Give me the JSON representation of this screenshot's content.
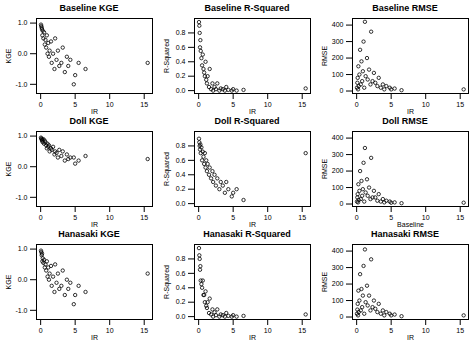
{
  "chart_data": [
    {
      "type": "scatter",
      "title": "Baseline KGE",
      "x_label": "IR",
      "y_label": "KGE",
      "color": "#000000",
      "marker": "open circle",
      "x": [
        0.05,
        0.1,
        0.15,
        0.2,
        0.25,
        0.3,
        0.4,
        0.5,
        0.6,
        0.7,
        0.8,
        0.9,
        1.0,
        1.1,
        1.2,
        1.3,
        1.5,
        1.6,
        1.8,
        2.0,
        2.1,
        2.3,
        2.5,
        2.7,
        3.0,
        3.2,
        3.5,
        3.8,
        4.0,
        4.3,
        4.8,
        5.0,
        5.5,
        6.5,
        15.5
      ],
      "values": [
        0.95,
        0.9,
        0.85,
        0.8,
        0.6,
        0.75,
        0.5,
        0.7,
        0.3,
        0.45,
        0.2,
        0.6,
        0.0,
        0.35,
        -0.1,
        0.1,
        0.4,
        -0.3,
        0.0,
        -0.5,
        0.5,
        -0.2,
        0.1,
        -0.4,
        -0.3,
        0.2,
        -0.6,
        -0.1,
        -0.4,
        -0.2,
        -1.0,
        -0.7,
        -0.3,
        -0.5,
        -0.3
      ],
      "xlim": [
        -0.6,
        16.2
      ],
      "xticks": [
        0,
        5,
        10,
        15
      ],
      "ylim": [
        -1.3,
        1.15
      ],
      "yticks": [
        {
          "value": -1,
          "label": "-1.0"
        },
        {
          "value": 0,
          "label": "0.0"
        },
        {
          "value": 1,
          "label": "1.0"
        }
      ]
    },
    {
      "type": "scatter",
      "title": "Baseline R-Squared",
      "x_label": "IR",
      "y_label": "R-Squared",
      "color": "#000000",
      "marker": "open circle",
      "x": [
        0.05,
        0.1,
        0.15,
        0.2,
        0.25,
        0.3,
        0.4,
        0.5,
        0.6,
        0.7,
        0.8,
        0.9,
        1.0,
        1.1,
        1.2,
        1.3,
        1.5,
        1.6,
        1.8,
        2.0,
        2.1,
        2.3,
        2.5,
        2.7,
        3.0,
        3.2,
        3.5,
        3.8,
        4.0,
        4.3,
        4.8,
        5.0,
        5.5,
        6.5,
        15.5
      ],
      "values": [
        0.95,
        0.9,
        0.8,
        0.6,
        0.7,
        0.55,
        0.45,
        0.35,
        0.5,
        0.3,
        0.25,
        0.2,
        0.4,
        0.15,
        0.1,
        0.2,
        0.05,
        0.3,
        0.02,
        0.1,
        0.0,
        0.05,
        0.02,
        0.1,
        0.0,
        0.03,
        0.02,
        0.0,
        0.05,
        0.01,
        0.0,
        0.02,
        0.0,
        0.01,
        0.03
      ],
      "xlim": [
        -0.6,
        16.2
      ],
      "xticks": [
        0,
        5,
        10,
        15
      ],
      "ylim": [
        -0.04,
        1.0
      ],
      "yticks": [
        {
          "value": 0,
          "label": "0.0"
        },
        0.2,
        0.4,
        0.6,
        0.8
      ]
    },
    {
      "type": "scatter",
      "title": "Baseline RMSE",
      "x_label": "IR",
      "y_label": "RMSE",
      "color": "#000000",
      "marker": "open circle",
      "x": [
        0.05,
        0.1,
        0.15,
        0.2,
        0.25,
        0.3,
        0.4,
        0.5,
        0.6,
        0.7,
        0.8,
        0.9,
        1.0,
        1.1,
        1.2,
        1.3,
        1.5,
        1.6,
        1.8,
        2.0,
        2.1,
        2.3,
        2.5,
        2.7,
        3.0,
        3.2,
        3.5,
        3.8,
        4.0,
        4.3,
        4.8,
        5.0,
        5.5,
        6.5,
        15.5
      ],
      "values": [
        20,
        50,
        80,
        10,
        150,
        30,
        100,
        250,
        40,
        180,
        60,
        120,
        300,
        20,
        420,
        90,
        200,
        70,
        130,
        40,
        360,
        60,
        110,
        50,
        30,
        80,
        20,
        40,
        10,
        30,
        20,
        10,
        15,
        5,
        10
      ],
      "xlim": [
        -0.6,
        16.2
      ],
      "xticks": [
        0,
        5,
        10,
        15
      ],
      "ylim": [
        -15,
        440
      ],
      "yticks": [
        0,
        100,
        200,
        300,
        400
      ]
    },
    {
      "type": "scatter",
      "title": "Doll KGE",
      "x_label": "IR",
      "y_label": "KGE",
      "color": "#000000",
      "marker": "open circle",
      "x": [
        0.05,
        0.1,
        0.15,
        0.2,
        0.25,
        0.3,
        0.4,
        0.5,
        0.6,
        0.7,
        0.8,
        0.9,
        1.0,
        1.1,
        1.2,
        1.3,
        1.5,
        1.6,
        1.8,
        2.0,
        2.1,
        2.3,
        2.5,
        2.7,
        3.0,
        3.2,
        3.5,
        3.8,
        4.0,
        4.3,
        4.8,
        5.0,
        5.5,
        6.5,
        15.5
      ],
      "values": [
        0.95,
        0.92,
        0.9,
        0.85,
        0.88,
        0.8,
        0.9,
        0.75,
        0.85,
        0.8,
        0.7,
        0.6,
        0.75,
        0.65,
        0.7,
        0.5,
        0.6,
        0.55,
        0.65,
        0.4,
        0.5,
        0.45,
        0.3,
        0.55,
        0.35,
        0.5,
        0.2,
        0.4,
        0.25,
        0.3,
        0.3,
        0.1,
        0.2,
        0.35,
        0.25
      ],
      "xlim": [
        -0.6,
        16.2
      ],
      "xticks": [
        0,
        5,
        10,
        15
      ],
      "ylim": [
        -1.3,
        1.15
      ],
      "yticks": [
        {
          "value": -1,
          "label": "-1.0"
        },
        {
          "value": 0,
          "label": "0.0"
        },
        {
          "value": 1,
          "label": "1.0"
        }
      ]
    },
    {
      "type": "scatter",
      "title": "Doll R-Squared",
      "x_label": "IR",
      "y_label": "R-Squared",
      "color": "#000000",
      "marker": "open circle",
      "x": [
        0.05,
        0.1,
        0.15,
        0.2,
        0.25,
        0.3,
        0.4,
        0.5,
        0.6,
        0.7,
        0.8,
        0.9,
        1.0,
        1.1,
        1.2,
        1.3,
        1.5,
        1.6,
        1.8,
        2.0,
        2.1,
        2.3,
        2.5,
        2.7,
        3.0,
        3.2,
        3.5,
        3.8,
        4.0,
        4.3,
        4.8,
        5.0,
        5.5,
        6.5,
        15.5
      ],
      "values": [
        0.9,
        0.85,
        0.8,
        0.75,
        0.82,
        0.7,
        0.78,
        0.6,
        0.72,
        0.65,
        0.55,
        0.7,
        0.5,
        0.6,
        0.45,
        0.55,
        0.4,
        0.5,
        0.35,
        0.45,
        0.3,
        0.4,
        0.25,
        0.35,
        0.2,
        0.3,
        0.25,
        0.15,
        0.3,
        0.2,
        0.1,
        0.15,
        0.2,
        0.05,
        0.7
      ],
      "xlim": [
        -0.6,
        16.2
      ],
      "xticks": [
        0,
        5,
        10,
        15
      ],
      "ylim": [
        -0.04,
        1.0
      ],
      "yticks": [
        {
          "value": 0,
          "label": "0.0"
        },
        0.2,
        0.4,
        0.6,
        0.8
      ]
    },
    {
      "type": "scatter",
      "title": "Doll RMSE",
      "x_label": "Baseline",
      "y_label": "RMSE",
      "color": "#000000",
      "marker": "open circle",
      "x": [
        0.05,
        0.1,
        0.15,
        0.2,
        0.25,
        0.3,
        0.4,
        0.5,
        0.6,
        0.7,
        0.8,
        0.9,
        1.0,
        1.1,
        1.2,
        1.3,
        1.5,
        1.6,
        1.8,
        2.0,
        2.1,
        2.3,
        2.5,
        2.7,
        3.0,
        3.2,
        3.5,
        3.8,
        4.0,
        4.3,
        4.8,
        5.0,
        5.5,
        6.5,
        15.5
      ],
      "values": [
        15,
        40,
        60,
        10,
        120,
        25,
        80,
        200,
        30,
        140,
        50,
        90,
        250,
        15,
        340,
        70,
        150,
        50,
        100,
        30,
        280,
        40,
        80,
        40,
        20,
        60,
        15,
        30,
        10,
        20,
        15,
        8,
        10,
        5,
        8
      ],
      "xlim": [
        -0.6,
        16.2
      ],
      "xticks": [
        0,
        5,
        10,
        15
      ],
      "ylim": [
        -15,
        440
      ],
      "yticks": [
        0,
        100,
        200,
        300,
        400
      ]
    },
    {
      "type": "scatter",
      "title": "Hanasaki KGE",
      "x_label": "IR",
      "y_label": "KGE",
      "color": "#000000",
      "marker": "open circle",
      "x": [
        0.05,
        0.1,
        0.15,
        0.2,
        0.25,
        0.3,
        0.4,
        0.5,
        0.6,
        0.7,
        0.8,
        0.9,
        1.0,
        1.1,
        1.2,
        1.3,
        1.5,
        1.6,
        1.8,
        2.0,
        2.1,
        2.3,
        2.5,
        2.7,
        3.0,
        3.2,
        3.5,
        3.8,
        4.0,
        4.3,
        4.8,
        5.0,
        5.5,
        6.5,
        15.5
      ],
      "values": [
        0.95,
        0.9,
        0.8,
        0.85,
        0.6,
        0.7,
        0.55,
        0.65,
        0.4,
        0.5,
        0.3,
        0.6,
        0.1,
        0.4,
        0.0,
        0.2,
        0.45,
        -0.2,
        0.1,
        -0.4,
        0.5,
        -0.1,
        0.2,
        -0.3,
        -0.2,
        0.3,
        -0.5,
        0.0,
        -0.3,
        -0.1,
        -0.8,
        -0.5,
        -0.2,
        -0.4,
        0.2
      ],
      "xlim": [
        -0.6,
        16.2
      ],
      "xticks": [
        0,
        5,
        10,
        15
      ],
      "ylim": [
        -1.3,
        1.15
      ],
      "yticks": [
        {
          "value": -1,
          "label": "-1.0"
        },
        {
          "value": 0,
          "label": "0.0"
        },
        {
          "value": 1,
          "label": "1.0"
        }
      ]
    },
    {
      "type": "scatter",
      "title": "Hanasaki R-Squared",
      "x_label": "IR",
      "y_label": "R-Squared",
      "color": "#000000",
      "marker": "open circle",
      "x": [
        0.05,
        0.1,
        0.15,
        0.2,
        0.25,
        0.3,
        0.4,
        0.5,
        0.6,
        0.7,
        0.8,
        0.9,
        1.0,
        1.1,
        1.2,
        1.3,
        1.5,
        1.6,
        1.8,
        2.0,
        2.1,
        2.3,
        2.5,
        2.7,
        3.0,
        3.2,
        3.5,
        3.8,
        4.0,
        4.3,
        4.8,
        5.0,
        5.5,
        6.5,
        15.5
      ],
      "values": [
        0.95,
        0.85,
        0.8,
        0.65,
        0.7,
        0.5,
        0.45,
        0.4,
        0.5,
        0.3,
        0.3,
        0.2,
        0.35,
        0.15,
        0.12,
        0.2,
        0.05,
        0.25,
        0.03,
        0.1,
        0.0,
        0.06,
        0.02,
        0.1,
        0.0,
        0.03,
        0.02,
        0.0,
        0.05,
        0.01,
        0.0,
        0.02,
        0.0,
        0.01,
        0.03
      ],
      "xlim": [
        -0.6,
        16.2
      ],
      "xticks": [
        0,
        5,
        10,
        15
      ],
      "ylim": [
        -0.04,
        1.0
      ],
      "yticks": [
        {
          "value": 0,
          "label": "0.0"
        },
        0.2,
        0.4,
        0.6,
        0.8
      ]
    },
    {
      "type": "scatter",
      "title": "Hanasaki RMSE",
      "x_label": "IR",
      "y_label": "RMSE",
      "color": "#000000",
      "marker": "open circle",
      "x": [
        0.05,
        0.1,
        0.15,
        0.2,
        0.25,
        0.3,
        0.4,
        0.5,
        0.6,
        0.7,
        0.8,
        0.9,
        1.0,
        1.1,
        1.2,
        1.3,
        1.5,
        1.6,
        1.8,
        2.0,
        2.1,
        2.3,
        2.5,
        2.7,
        3.0,
        3.2,
        3.5,
        3.8,
        4.0,
        4.3,
        4.8,
        5.0,
        5.5,
        6.5,
        15.5
      ],
      "values": [
        20,
        45,
        80,
        10,
        160,
        30,
        100,
        260,
        40,
        170,
        60,
        130,
        310,
        20,
        410,
        90,
        190,
        70,
        130,
        40,
        350,
        60,
        100,
        50,
        30,
        80,
        20,
        40,
        10,
        30,
        20,
        10,
        15,
        5,
        10
      ],
      "xlim": [
        -0.6,
        16.2
      ],
      "xticks": [
        0,
        5,
        10,
        15
      ],
      "ylim": [
        -15,
        440
      ],
      "yticks": [
        0,
        100,
        200,
        300,
        400
      ]
    }
  ]
}
